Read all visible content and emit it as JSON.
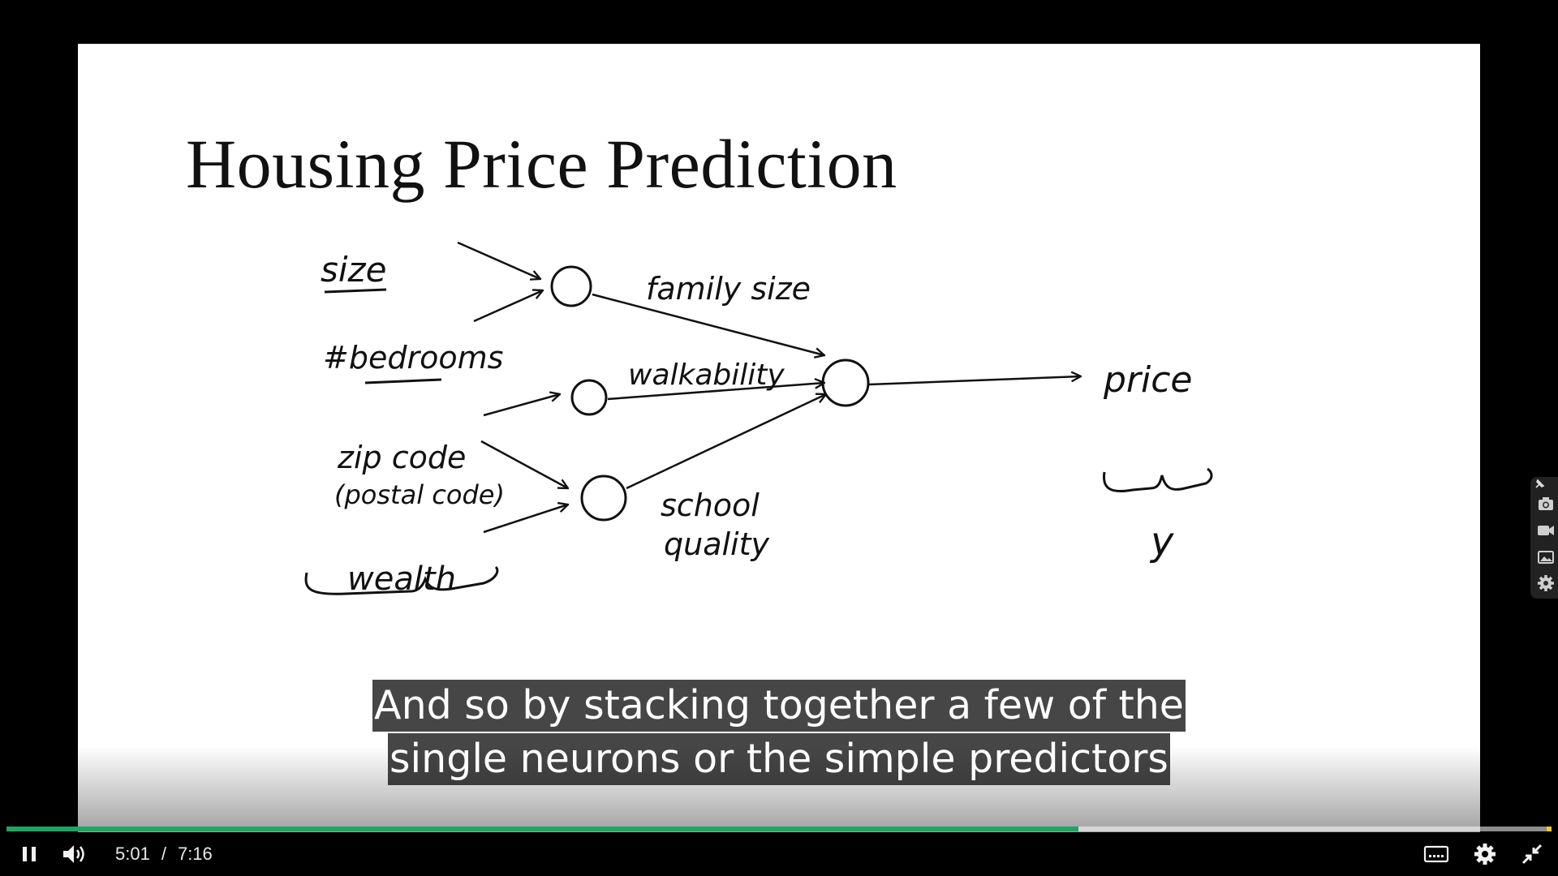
{
  "slide": {
    "title": "Housing Price Prediction",
    "labels": {
      "size": "size",
      "bedrooms": "#bedrooms",
      "zip_code": "zip code",
      "postal_code": "(postal code)",
      "wealth": "wealth",
      "family_size": "family size",
      "walkability": "walkability",
      "school": "school",
      "quality": "quality",
      "price": "price",
      "y": "y"
    }
  },
  "captions": {
    "line1": "And so by stacking together a few of the",
    "line2": "single neurons or the simple predictors"
  },
  "player": {
    "current_time": "5:01",
    "separator": "/",
    "duration": "7:16",
    "progress_fraction": 0.6936,
    "colors": {
      "progress": "#1fa463",
      "end_marker": "#f4d000"
    },
    "icons": {
      "play_pause": "pause-icon",
      "volume": "volume-icon",
      "captions": "captions-icon",
      "settings": "gear-icon",
      "fullscreen": "exit-fullscreen-icon"
    }
  },
  "side_tools": [
    "pin-icon",
    "camera-icon",
    "video-camera-icon",
    "image-icon",
    "gear-icon"
  ]
}
